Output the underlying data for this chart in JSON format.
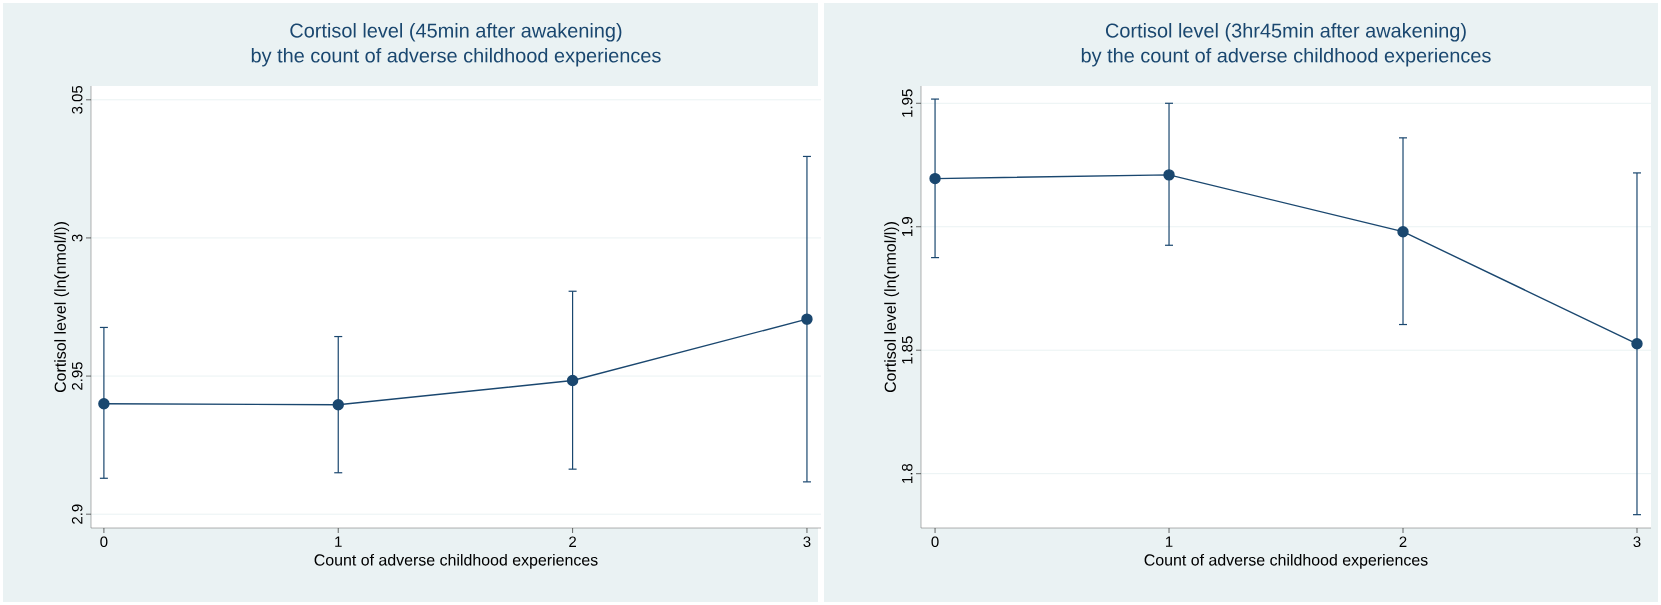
{
  "chart_data": [
    {
      "type": "line",
      "title": "Cortisol level (45min after awakening)",
      "subtitle": "by the count of adverse childhood experiences",
      "xlabel": "Count of adverse childhood experiences",
      "ylabel": "Cortisol level (ln(nmol/l))",
      "x": [
        0,
        1,
        2,
        3
      ],
      "xlim": [
        -0.055,
        3.06
      ],
      "xticks": [
        0,
        1,
        2,
        3
      ],
      "ylim": [
        2.895,
        3.055
      ],
      "yticks": [
        2.9,
        2.95,
        3,
        3.05
      ],
      "grid": "y",
      "marker": "circle",
      "line_style": "solid",
      "series": [
        {
          "color": "#1a476f",
          "values": [
            2.94,
            2.9396,
            2.9484,
            2.9706
          ],
          "errors": [
            [
              2.913,
              2.9676
            ],
            [
              2.915,
              2.9643
            ],
            [
              2.9163,
              2.9807
            ],
            [
              2.9117,
              3.0295
            ]
          ]
        }
      ]
    },
    {
      "type": "line",
      "title": "Cortisol level (3hr45min after awakening)",
      "subtitle": "by the count of adverse childhood experiences",
      "xlabel": "Count of adverse childhood experiences",
      "ylabel": "Cortisol level (ln(nmol/l))",
      "x": [
        0,
        1,
        2,
        3
      ],
      "xlim": [
        -0.06,
        3.06
      ],
      "xticks": [
        0,
        1,
        2,
        3
      ],
      "ylim": [
        1.778,
        1.957
      ],
      "yticks": [
        1.8,
        1.85,
        1.9,
        1.95
      ],
      "grid": "y",
      "marker": "circle",
      "line_style": "solid",
      "series": [
        {
          "color": "#1a476f",
          "values": [
            1.9195,
            1.921,
            1.898,
            1.8526
          ],
          "errors": [
            [
              1.8875,
              1.9517
            ],
            [
              1.8925,
              1.95
            ],
            [
              1.8604,
              1.936
            ],
            [
              1.7834,
              1.9218
            ]
          ]
        }
      ]
    }
  ]
}
